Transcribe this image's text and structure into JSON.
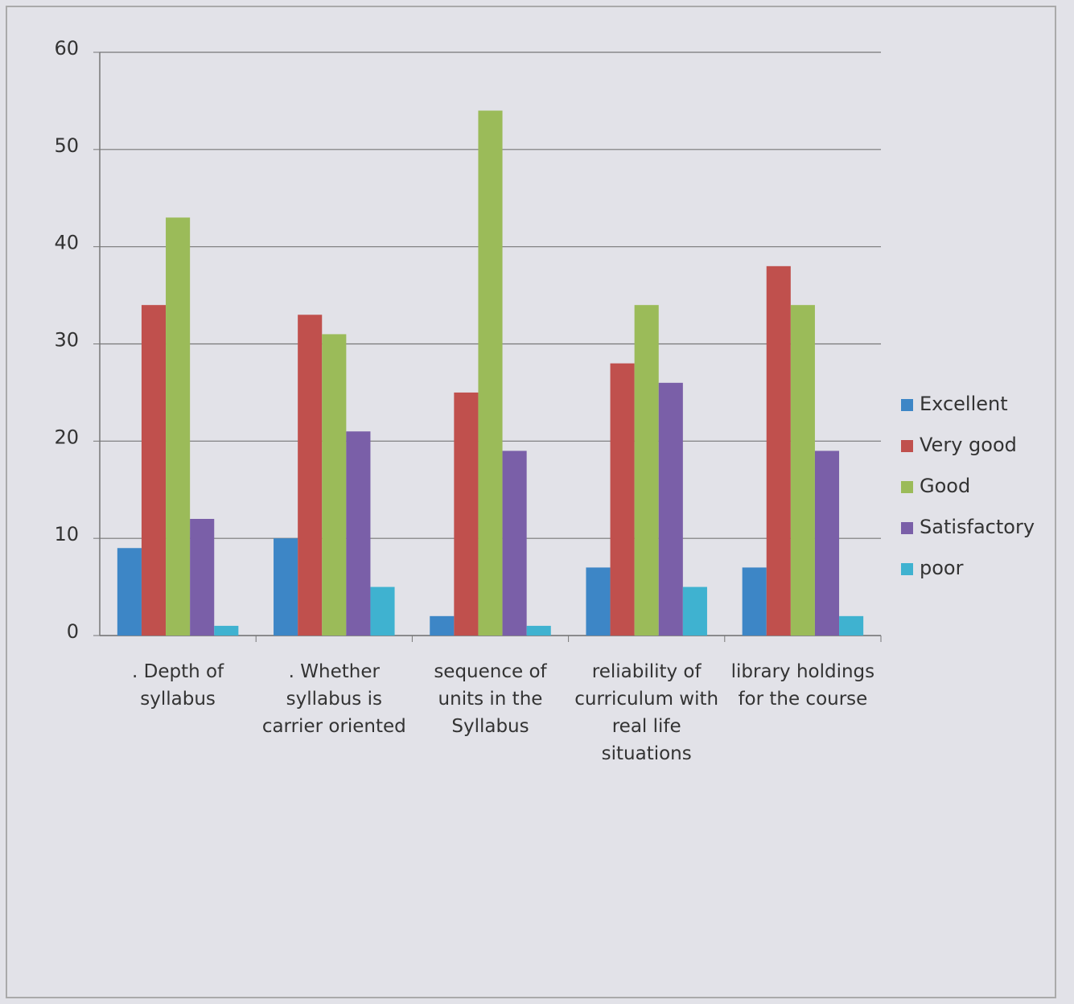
{
  "chart_data": {
    "type": "bar",
    "categories": [
      ". Depth of syllabus",
      ". Whether syllabus is carrier oriented",
      "sequence of units in the Syllabus",
      "reliability of curriculum with real life situations",
      "library holdings for the course"
    ],
    "series": [
      {
        "name": "Excellent",
        "color": "#3d86c6",
        "values": [
          9,
          10,
          2,
          7,
          7
        ]
      },
      {
        "name": "Very good",
        "color": "#c0504d",
        "values": [
          34,
          33,
          25,
          28,
          38
        ]
      },
      {
        "name": "Good",
        "color": "#9bbb59",
        "values": [
          43,
          31,
          54,
          34,
          34
        ]
      },
      {
        "name": "Satisfactory",
        "color": "#7a5fa8",
        "values": [
          12,
          21,
          19,
          26,
          19
        ]
      },
      {
        "name": "poor",
        "color": "#3fb2d0",
        "values": [
          1,
          5,
          1,
          5,
          2
        ]
      }
    ],
    "ylim": [
      0,
      60
    ],
    "yticks": [
      0,
      10,
      20,
      30,
      40,
      50,
      60
    ],
    "grid": true,
    "legend": "right"
  }
}
